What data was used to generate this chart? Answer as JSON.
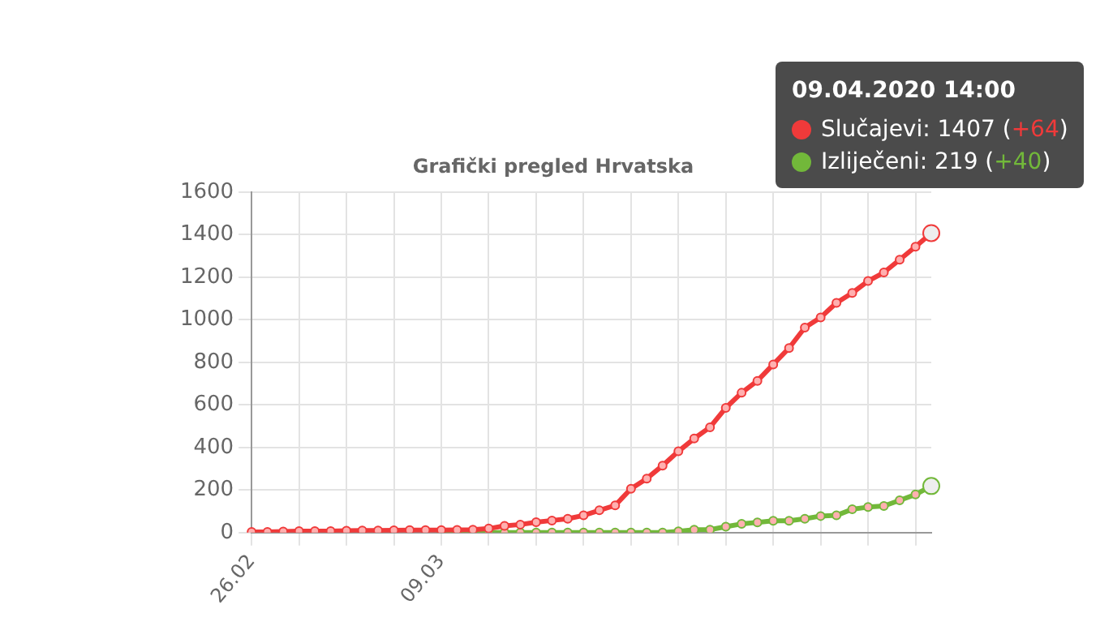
{
  "chart_data": {
    "type": "line",
    "title": "Grafički pregled Hrvatska",
    "categories": [
      "26.02",
      null,
      null,
      null,
      null,
      null,
      null,
      null,
      null,
      null,
      null,
      null,
      "09.03",
      null,
      null,
      null,
      null,
      null,
      null,
      null,
      null,
      null,
      null,
      null,
      null,
      null,
      null,
      null,
      null,
      null,
      null,
      null,
      null,
      null,
      null,
      null,
      null,
      null,
      null,
      null,
      null,
      null,
      null,
      null
    ],
    "series": [
      {
        "color": "#f03a3a",
        "values": [
          3,
          3,
          5,
          7,
          7,
          7,
          9,
          10,
          10,
          11,
          12,
          12,
          12,
          13,
          14,
          19,
          32,
          38,
          49,
          57,
          65,
          81,
          105,
          128,
          206,
          254,
          315,
          382,
          442,
          495,
          586,
          657,
          713,
          790,
          867,
          963,
          1011,
          1079,
          1126,
          1182,
          1222,
          1282,
          1343,
          1407
        ]
      },
      {
        "color": "#72b83a",
        "values": [
          null,
          null,
          null,
          null,
          null,
          null,
          null,
          null,
          null,
          null,
          null,
          null,
          0,
          0,
          0,
          0,
          0,
          0,
          0,
          0,
          0,
          0,
          0,
          0,
          0,
          0,
          0,
          6,
          14,
          14,
          28,
          41,
          48,
          56,
          56,
          65,
          78,
          81,
          110,
          120,
          125,
          152,
          179,
          219
        ]
      }
    ],
    "annotations": [
      "09.04.2020 14:00",
      "Slučajevi: 1407 (+64)",
      "Izliječeni: 219 (+40)"
    ],
    "ylim": [
      0,
      1600
    ],
    "yticks": [
      0,
      200,
      400,
      600,
      800,
      1000,
      1200,
      1400,
      1600
    ],
    "grid": true,
    "marker": "circle",
    "line_style": "solid"
  }
}
